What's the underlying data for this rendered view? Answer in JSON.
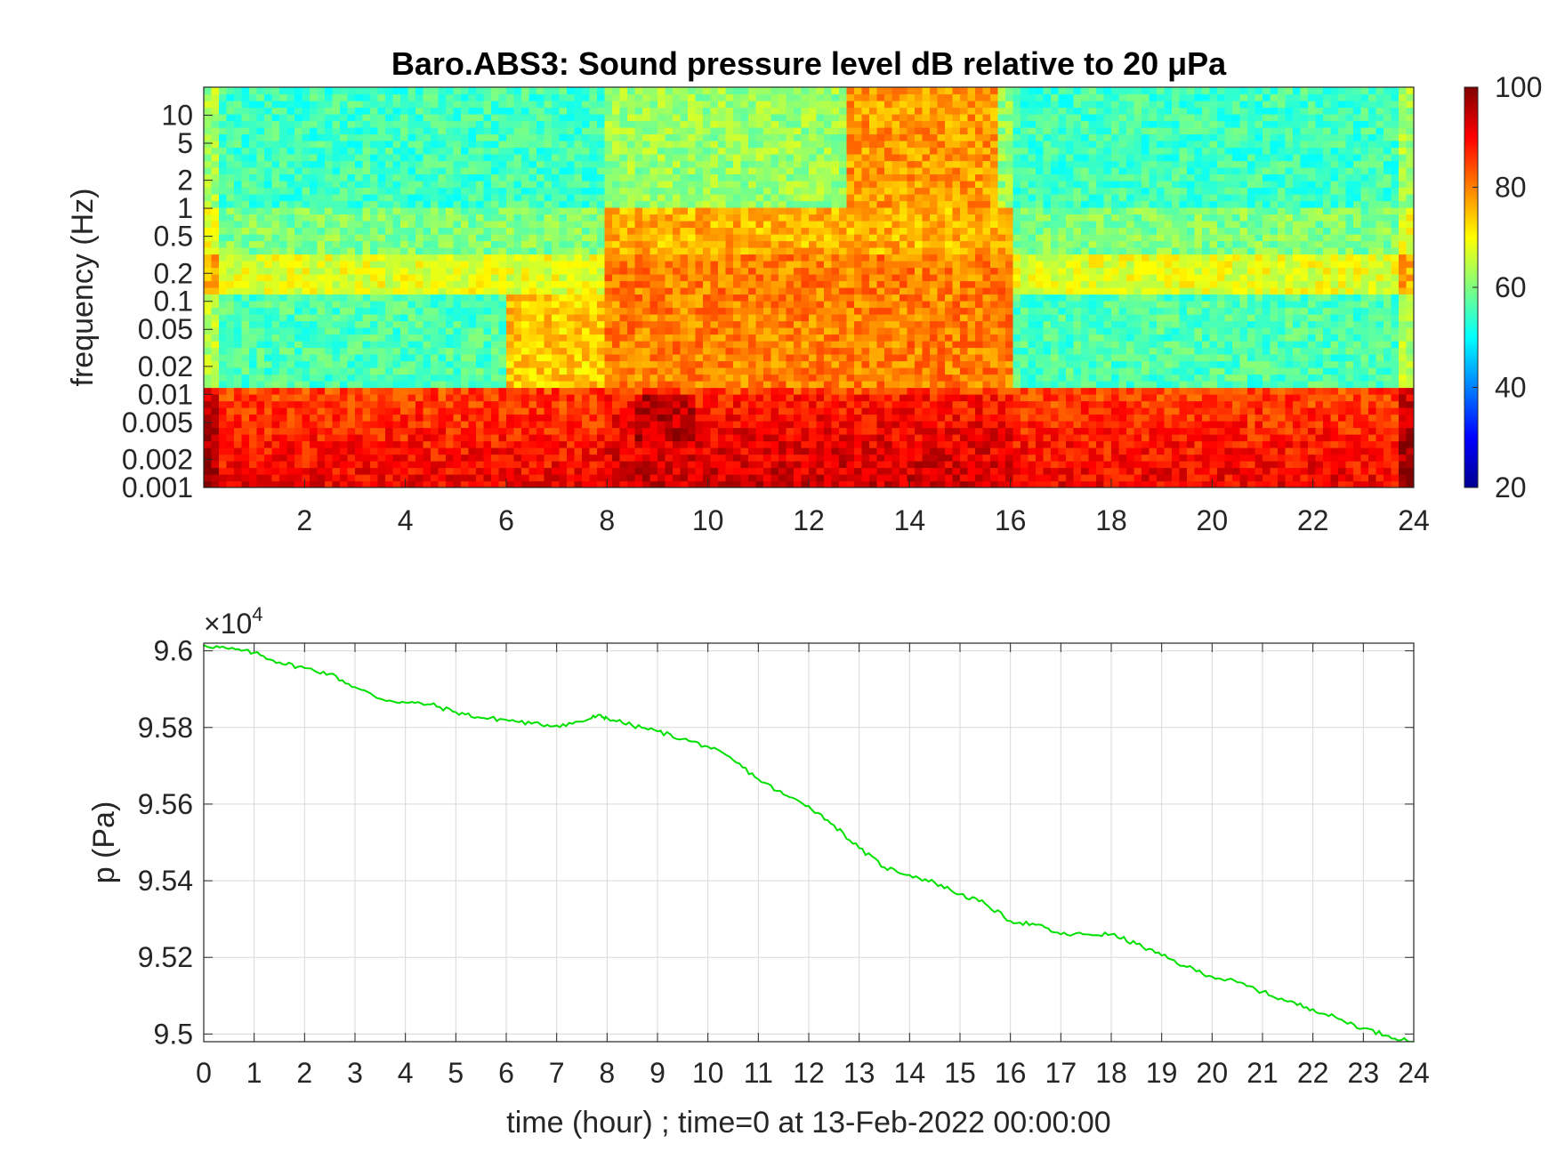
{
  "figure": {
    "colors": {
      "background": "#ffffff",
      "axis": "#262626",
      "grid": "#d9d9d9",
      "line": "#00e000"
    }
  },
  "chart_data": [
    {
      "type": "heatmap",
      "title": "Baro.ABS3: Sound pressure level dB relative to 20 μPa",
      "xlabel": "",
      "ylabel": "frequency (Hz)",
      "x_unit": "hour",
      "xlim": [
        0,
        24
      ],
      "x_ticks": [
        2,
        4,
        6,
        8,
        10,
        12,
        14,
        16,
        18,
        20,
        22,
        24
      ],
      "y_scale": "log",
      "ylim": [
        0.001,
        20
      ],
      "y_ticks": [
        0.001,
        0.002,
        0.005,
        0.01,
        0.02,
        0.05,
        0.1,
        0.2,
        0.5,
        1,
        2,
        5,
        10
      ],
      "y_tick_labels": [
        "0.001",
        "0.002",
        "0.005",
        "0.01",
        "0.02",
        "0.05",
        "0.1",
        "0.2",
        "0.5",
        "1",
        "2",
        "5",
        "10"
      ],
      "colormap": "jet",
      "colorbar": {
        "range": [
          20,
          100
        ],
        "ticks": [
          20,
          40,
          60,
          80,
          100
        ]
      },
      "approx_levels_db": {
        "background_above_1hz": 55,
        "band_0p15_to_0p3hz": 68,
        "quiet_band_0p02_to_0p1hz": 52,
        "below_0p01hz": 85,
        "active_period_hours": [
          8,
          16
        ],
        "active_period_level": 80,
        "peak_region": {
          "hours": [
            8.5,
            9.8
          ],
          "freq_hz": [
            0.003,
            0.01
          ],
          "level": 95
        }
      }
    },
    {
      "type": "line",
      "title": "",
      "xlabel": "time (hour) ; time=0 at 13-Feb-2022 00:00:00",
      "ylabel": "p (Pa)",
      "exponent_label": "×10",
      "exponent_power": "4",
      "xlim": [
        0,
        24
      ],
      "ylim": [
        9.498,
        9.602
      ],
      "x_ticks": [
        0,
        1,
        2,
        3,
        4,
        5,
        6,
        7,
        8,
        9,
        10,
        11,
        12,
        13,
        14,
        15,
        16,
        17,
        18,
        19,
        20,
        21,
        22,
        23,
        24
      ],
      "y_ticks": [
        9.5,
        9.52,
        9.54,
        9.56,
        9.58,
        9.6
      ],
      "y_tick_labels": [
        "9.5",
        "9.52",
        "9.54",
        "9.56",
        "9.58",
        "9.6"
      ],
      "grid": true,
      "series": [
        {
          "color": "#00e000",
          "x": [
            0,
            0.5,
            1,
            1.5,
            2,
            2.5,
            3,
            3.5,
            4,
            4.5,
            5,
            5.5,
            6,
            6.5,
            7,
            7.5,
            7.8,
            8,
            8.5,
            9,
            9.5,
            10,
            10.5,
            11,
            11.5,
            12,
            12.5,
            13,
            13.5,
            14,
            14.5,
            15,
            15.5,
            16,
            16.5,
            17,
            17.5,
            18,
            18.5,
            19,
            19.5,
            20,
            20.5,
            21,
            21.5,
            22,
            22.5,
            23,
            23.5,
            24
          ],
          "y": [
            9.6015,
            9.6005,
            9.5995,
            9.597,
            9.5955,
            9.594,
            9.5905,
            9.5875,
            9.5865,
            9.586,
            9.584,
            9.5825,
            9.582,
            9.581,
            9.5805,
            9.5815,
            9.583,
            9.5825,
            9.5805,
            9.579,
            9.577,
            9.575,
            9.5715,
            9.5665,
            9.5625,
            9.5595,
            9.5545,
            9.5485,
            9.5435,
            9.5415,
            9.5395,
            9.5365,
            9.534,
            9.5295,
            9.5285,
            9.526,
            9.526,
            9.526,
            9.5235,
            9.5205,
            9.5175,
            9.515,
            9.5135,
            9.511,
            9.5085,
            9.5065,
            9.504,
            9.5015,
            9.4995,
            9.498
          ]
        }
      ]
    }
  ]
}
